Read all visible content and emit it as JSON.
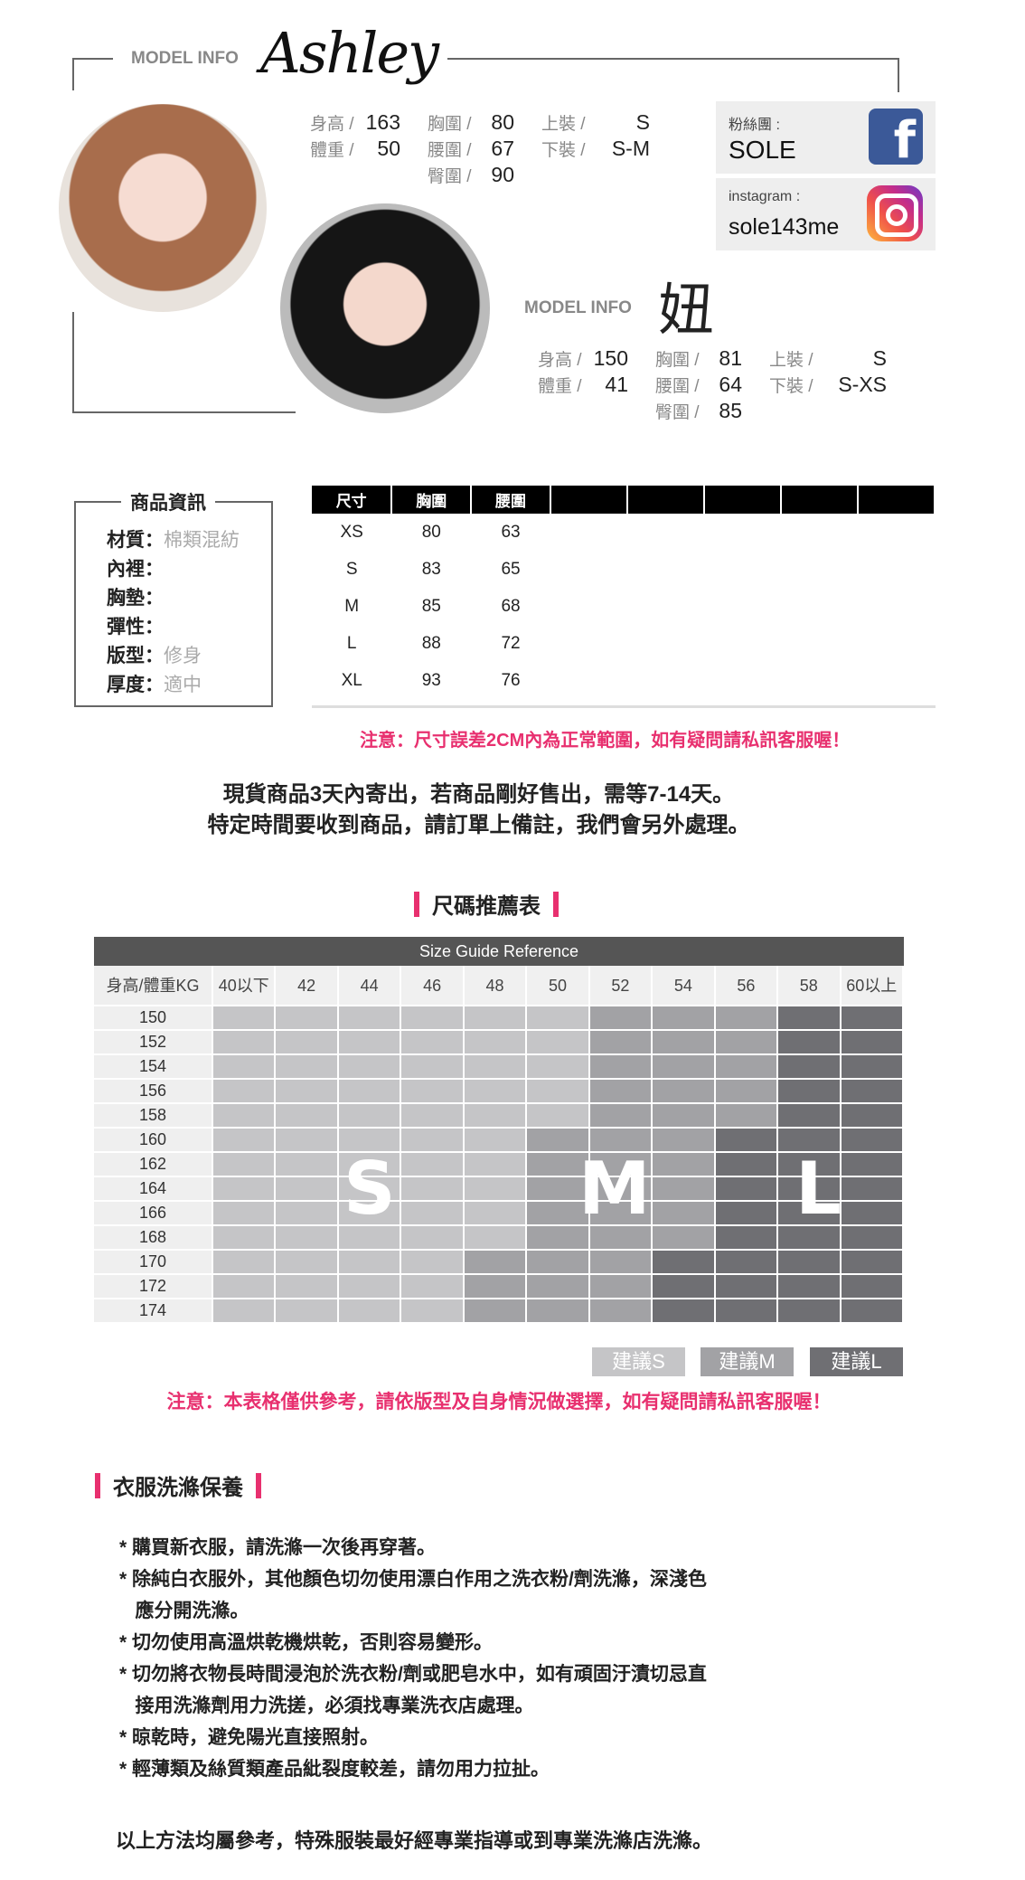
{
  "models": [
    {
      "label": "MODEL INFO",
      "name": "Ashley",
      "stats": [
        [
          "身高 /",
          "163",
          "胸圍 /",
          "80",
          "上裝 /",
          "S"
        ],
        [
          "體重 /",
          "50",
          "腰圍 /",
          "67",
          "下裝 /",
          "S-M"
        ],
        [
          "",
          "",
          "臀圍 /",
          "90",
          "",
          ""
        ]
      ]
    },
    {
      "label": "MODEL INFO",
      "name": "妞",
      "stats": [
        [
          "身高 /",
          "150",
          "胸圍 /",
          "81",
          "上裝 /",
          "S"
        ],
        [
          "體重 /",
          "41",
          "腰圍 /",
          "64",
          "下裝 /",
          "S-XS"
        ],
        [
          "",
          "",
          "臀圍 /",
          "85",
          "",
          ""
        ]
      ]
    }
  ],
  "social": {
    "facebook": {
      "label": "粉絲團 :",
      "value": "SOLE",
      "icon": "facebook-icon",
      "color": "#3b5998"
    },
    "instagram": {
      "label": "instagram :",
      "value": "sole143me",
      "icon": "instagram-icon"
    }
  },
  "product_info": {
    "title": "商品資訊",
    "rows": [
      {
        "k": "材質：",
        "v": "棉類混紡"
      },
      {
        "k": "內裡：",
        "v": ""
      },
      {
        "k": "胸墊：",
        "v": ""
      },
      {
        "k": "彈性：",
        "v": ""
      },
      {
        "k": "版型：",
        "v": "修身"
      },
      {
        "k": "厚度：",
        "v": "適中"
      }
    ]
  },
  "size_table": {
    "headers": [
      "尺寸",
      "胸圍",
      "腰圍",
      "",
      "",
      "",
      "",
      ""
    ],
    "rows": [
      [
        "XS",
        "80",
        "63"
      ],
      [
        "S",
        "83",
        "65"
      ],
      [
        "M",
        "85",
        "68"
      ],
      [
        "L",
        "88",
        "72"
      ],
      [
        "XL",
        "93",
        "76"
      ]
    ]
  },
  "size_note": "注意：尺寸誤差2CM內為正常範圍，如有疑問請私訊客服喔！",
  "shipping": [
    "現貨商品3天內寄出，若商品剛好售出，需等7-14天。",
    "特定時間要收到商品，請訂單上備註，我們會另外處理。"
  ],
  "guide": {
    "heading": "尺碼推薦表",
    "title": "Size Guide Reference",
    "corner": "身高/體重KG",
    "weights": [
      "40以下",
      "42",
      "44",
      "46",
      "48",
      "50",
      "52",
      "54",
      "56",
      "58",
      "60以上"
    ],
    "heights": [
      "150",
      "152",
      "154",
      "156",
      "158",
      "160",
      "162",
      "164",
      "166",
      "168",
      "170",
      "172",
      "174"
    ],
    "cells": [
      "SSSSSSMMMLL",
      "SSSSSSMMMLL",
      "SSSSSSMMMLL",
      "SSSSSSMMMLL",
      "SSSSSSMMMLL",
      "SSSSSMMMLLL",
      "SSSSSMMMLLL",
      "SSSSSMMMLLL",
      "SSSSSMMMLLL",
      "SSSSSMMMLLL",
      "SSSSMMMLLLL",
      "SSSSMMMLLLL",
      "SSSSMMMLLLL"
    ],
    "zone_labels": {
      "S": "S",
      "M": "M",
      "L": "L"
    },
    "colors": {
      "S": "#c5c5c7",
      "M": "#a2a2a5",
      "L": "#6f6f73"
    },
    "legend": [
      "建議S",
      "建議M",
      "建議L"
    ],
    "note": "注意：本表格僅供參考，請依版型及自身情況做選擇，如有疑問請私訊客服喔！"
  },
  "care": {
    "heading": "衣服洗滌保養",
    "lines": [
      "* 購買新衣服，請洗滌一次後再穿著。",
      "* 除純白衣服外，其他顏色切勿使用漂白作用之洗衣粉/劑洗滌，深淺色",
      "   應分開洗滌。",
      "* 切勿使用高溫烘乾機烘乾，否則容易變形。",
      "* 切勿將衣物長時間浸泡於洗衣粉/劑或肥皂水中，如有頑固汙漬切忌直",
      "   接用洗滌劑用力洗搓，必須找專業洗衣店處理。",
      "* 晾乾時，避免陽光直接照射。",
      "* 輕薄類及絲質類產品紕裂度較差，請勿用力拉扯。"
    ],
    "footer": "以上方法均屬參考，特殊服裝最好經專業指導或到專業洗滌店洗滌。"
  },
  "accent": "#e8306f"
}
